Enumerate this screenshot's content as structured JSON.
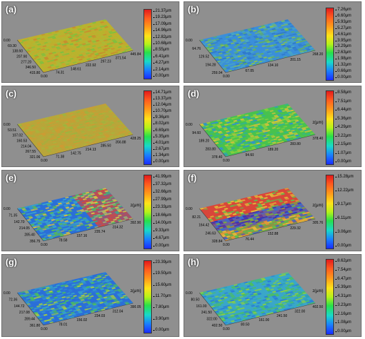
{
  "panels": [
    {
      "label": "(a)",
      "unit": "z(μm)",
      "ticks": [
        "21.37μm",
        "19.23μm",
        "17.09μm",
        "14.96μm",
        "12.82μm",
        "10.68μm",
        "8.55μm",
        "6.41μm",
        "4.27μm",
        "2.14μm",
        "0.00μm"
      ],
      "x_ticks": [
        "0.00",
        "74.31",
        "148.61",
        "222.92",
        "297.23",
        "371.54",
        "445.84"
      ],
      "y_ticks": [
        "0.00",
        "69.30",
        "138.60",
        "207.90",
        "277.20",
        "346.50",
        "415.80"
      ],
      "z_label": "z(μm)",
      "palette": [
        "#b9b32e",
        "#c6a630",
        "#a8bb3a",
        "#7fbf3f",
        "#c98b2e"
      ]
    },
    {
      "label": "(b)",
      "unit": "z(μm)",
      "ticks": [
        "7.26μm",
        "6.60μm",
        "5.93μm",
        "5.27μm",
        "4.61μm",
        "3.95μm",
        "3.29μm",
        "2.63μm",
        "1.98μm",
        "1.32μm",
        "0.66μm",
        "0.00μm"
      ],
      "x_ticks": [
        "0.00",
        "67.05",
        "134.10",
        "201.15",
        "268.20"
      ],
      "y_ticks": [
        "0.00",
        "64.76",
        "129.52",
        "194.28",
        "259.04"
      ],
      "z_label": "z(μm)",
      "palette": [
        "#3b8fd9",
        "#4aa8c2",
        "#63b35c",
        "#2f79c9",
        "#8ac44a"
      ]
    },
    {
      "label": "(c)",
      "unit": "z(μm)",
      "ticks": [
        "14.71μm",
        "13.37μm",
        "12.04μm",
        "10.70μm",
        "9.36μm",
        "8.02μm",
        "6.69μm",
        "5.35μm",
        "4.01μm",
        "2.67μm",
        "1.34μm",
        "0.00μm"
      ],
      "x_ticks": [
        "0.00",
        "71.38",
        "142.75",
        "214.13",
        "285.50",
        "356.88",
        "428.25"
      ],
      "y_ticks": [
        "0.00",
        "53.51",
        "107.02",
        "160.53",
        "214.04",
        "267.55",
        "321.06"
      ],
      "z_label": "z(μm)",
      "palette": [
        "#b8a63a",
        "#c4a036",
        "#a9b33c",
        "#cf9a33",
        "#9db43e"
      ]
    },
    {
      "label": "(d)",
      "unit": "z(μm)",
      "ticks": [
        "8.58μm",
        "7.51μm",
        "6.44μm",
        "5.36μm",
        "4.29μm",
        "3.22μm",
        "2.15μm",
        "1.07μm",
        "0.00μm"
      ],
      "x_ticks": [
        "0.00",
        "94.60",
        "189.20",
        "283.80",
        "378.40"
      ],
      "y_ticks": [
        "0.00",
        "94.60",
        "189.20",
        "283.80",
        "378.40"
      ],
      "z_label": "z(μm)",
      "palette": [
        "#48c24f",
        "#8bd03c",
        "#d9c23a",
        "#2fb39a",
        "#2f8fd6"
      ]
    },
    {
      "label": "(e)",
      "unit": "z(μm)",
      "ticks": [
        "41.99μm",
        "37.32μm",
        "32.66μm",
        "27.99μm",
        "23.33μm",
        "18.66μm",
        "14.00μm",
        "9.33μm",
        "4.67μm",
        "0.00μm"
      ],
      "x_ticks": [
        "0.00",
        "78.58",
        "157.16",
        "235.74",
        "314.32",
        "392.90"
      ],
      "y_ticks": [
        "0.00",
        "71.35",
        "142.70",
        "214.05",
        "285.40",
        "356.75"
      ],
      "z_label": "z(μm)",
      "palette": [
        "#2b6fd8",
        "#3aa7c9",
        "#5dc24c",
        "#e0c33a",
        "#d9473a"
      ]
    },
    {
      "label": "(f)",
      "unit": "z(μm)",
      "ticks": [
        "15.28μm",
        "12.22μm",
        "9.17μm",
        "6.11μm",
        "3.06μm",
        "0.00μm"
      ],
      "x_ticks": [
        "0.00",
        "76.44",
        "152.88",
        "229.32",
        "305.76"
      ],
      "y_ticks": [
        "0.00",
        "82.21",
        "164.42",
        "246.63",
        "328.84"
      ],
      "z_label": "z(μm)",
      "palette": [
        "#d9473a",
        "#e0c33a",
        "#5dc24c",
        "#2b6fd8",
        "#2334c9"
      ]
    },
    {
      "label": "(g)",
      "unit": "z(μm)",
      "ticks": [
        "23.39μm",
        "19.50μm",
        "15.60μm",
        "11.70μm",
        "7.80μm",
        "3.90μm",
        "0.00μm"
      ],
      "x_ticks": [
        "0.00",
        "78.01",
        "156.02",
        "234.03",
        "312.04",
        "390.05"
      ],
      "y_ticks": [
        "0.00",
        "72.36",
        "144.72",
        "217.08",
        "289.44",
        "361.80"
      ],
      "z_label": "z(μm)",
      "palette": [
        "#2b6fd8",
        "#36a5c7",
        "#4cc05a",
        "#2f86d4",
        "#a6cf3e"
      ]
    },
    {
      "label": "(h)",
      "unit": "z(μm)",
      "ticks": [
        "8.62μm",
        "7.54μm",
        "6.47μm",
        "5.39μm",
        "4.31μm",
        "3.23μm",
        "2.16μm",
        "1.08μm",
        "0.00μm"
      ],
      "x_ticks": [
        "0.00",
        "80.50",
        "161.00",
        "241.50",
        "322.00",
        "402.50"
      ],
      "y_ticks": [
        "0.00",
        "80.50",
        "161.00",
        "241.50",
        "322.00",
        "402.50"
      ],
      "z_label": "z(μm)",
      "palette": [
        "#3aa7c9",
        "#4cc05a",
        "#2b7bd8",
        "#8bd03c",
        "#2f9fb8"
      ]
    }
  ]
}
